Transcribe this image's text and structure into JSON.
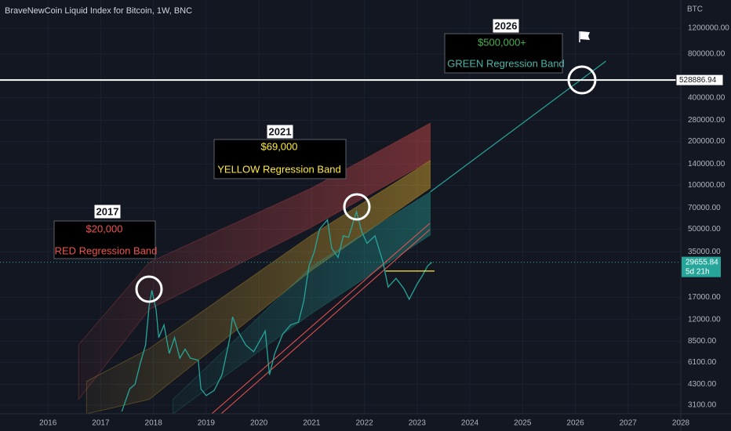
{
  "chart_data": {
    "type": "line",
    "title": "BraveNewCoin Liquid Index for Bitcoin, 1W, BNC",
    "currency": "BTC",
    "log_scale": true,
    "grid": true,
    "x": [
      2017.4,
      2017.55,
      2017.65,
      2017.75,
      2017.85,
      2017.92,
      2017.97,
      2018.05,
      2018.1,
      2018.2,
      2018.3,
      2018.4,
      2018.5,
      2018.6,
      2018.7,
      2018.85,
      2018.9,
      2019.0,
      2019.15,
      2019.3,
      2019.45,
      2019.5,
      2019.6,
      2019.75,
      2019.9,
      2020.05,
      2020.12,
      2020.2,
      2020.3,
      2020.45,
      2020.6,
      2020.75,
      2020.85,
      2020.95,
      2021.05,
      2021.15,
      2021.3,
      2021.38,
      2021.5,
      2021.6,
      2021.7,
      2021.85,
      2021.95,
      2022.05,
      2022.2,
      2022.35,
      2022.45,
      2022.6,
      2022.75,
      2022.85,
      2023.0,
      2023.1,
      2023.2,
      2023.28
    ],
    "series": [
      {
        "color": "#26a69a",
        "values": [
          2800,
          4000,
          4300,
          6000,
          8000,
          15000,
          19000,
          14000,
          9000,
          11000,
          7000,
          9000,
          6500,
          7500,
          6500,
          6300,
          4000,
          3600,
          3900,
          5000,
          9000,
          12500,
          10000,
          8000,
          7200,
          9000,
          10000,
          5000,
          7000,
          9500,
          11000,
          11500,
          16000,
          28000,
          35000,
          50000,
          58000,
          37000,
          32000,
          45000,
          44000,
          66000,
          48000,
          40000,
          45000,
          30000,
          20000,
          23000,
          19500,
          16500,
          21000,
          24000,
          28000,
          29655.84
        ]
      }
    ],
    "bands": [
      {
        "color": "#ef5350",
        "x": [
          2016.58,
          2017.92,
          2021.0,
          2023.25
        ],
        "lower": [
          3390,
          14060,
          51700,
          148000
        ],
        "upper": [
          8050,
          29600,
          95900,
          268000
        ]
      },
      {
        "color": "#fbc02d",
        "x": [
          2016.73,
          2017.92,
          2021.0,
          2023.25
        ],
        "lower": [
          2700,
          3390,
          26100,
          95900
        ],
        "upper": [
          4500,
          7570,
          45600,
          148000
        ]
      },
      {
        "color": "#26a69a",
        "x": [
          2018.37,
          2021.0,
          2023.25
        ],
        "lower": [
          2700,
          13200,
          45600
        ],
        "upper": [
          3390,
          27800,
          90200
        ]
      }
    ],
    "trend_line": {
      "color": "#26a69a",
      "x": [
        2023.25,
        2026.58
      ],
      "values": [
        90200,
        713000
      ]
    },
    "level_line": {
      "color": "#ffeb3b",
      "x": [
        2022.4,
        2023.33
      ],
      "values": [
        25800,
        25800
      ]
    },
    "price_line": 528886.94,
    "last_price": 29655.84,
    "countdown": "5d 21h",
    "xlim": [
      2015.09,
      2028.0
    ],
    "ylim": [
      2700,
      1875000
    ],
    "xticks": [
      2016,
      2017,
      2018,
      2019,
      2020,
      2021,
      2022,
      2023,
      2024,
      2025,
      2026,
      2027,
      2028
    ],
    "yticks": [
      {
        "value": 1200000,
        "label": "1200000.00"
      },
      {
        "value": 800000,
        "label": "800000.00"
      },
      {
        "value": 400000,
        "label": "400000.00"
      },
      {
        "value": 280000,
        "label": "280000.00"
      },
      {
        "value": 200000,
        "label": "200000.00"
      },
      {
        "value": 140000,
        "label": "140000.00"
      },
      {
        "value": 100000,
        "label": "100000.00"
      },
      {
        "value": 70000,
        "label": "70000.00"
      },
      {
        "value": 50000,
        "label": "50000.00"
      },
      {
        "value": 35000,
        "label": "35000.00"
      },
      {
        "value": 17000,
        "label": "17000.00"
      },
      {
        "value": 12000,
        "label": "12000.00"
      },
      {
        "value": 8500,
        "label": "8500.00"
      },
      {
        "value": 6100,
        "label": "6100.00"
      },
      {
        "value": 4300,
        "label": "4300.00"
      },
      {
        "value": 3100,
        "label": "3100.00"
      }
    ],
    "annotations": [
      {
        "year": "2017",
        "price": "$20,000",
        "band": "RED Regression Band",
        "color": "#ef5350"
      },
      {
        "year": "2021",
        "price": "$69,000",
        "band": "YELLOW Regression Band",
        "color": "#ffeb3b"
      },
      {
        "year": "2026",
        "price": "$500,000+",
        "band": "GREEN Regression Band",
        "color": "#4caf50"
      }
    ]
  }
}
